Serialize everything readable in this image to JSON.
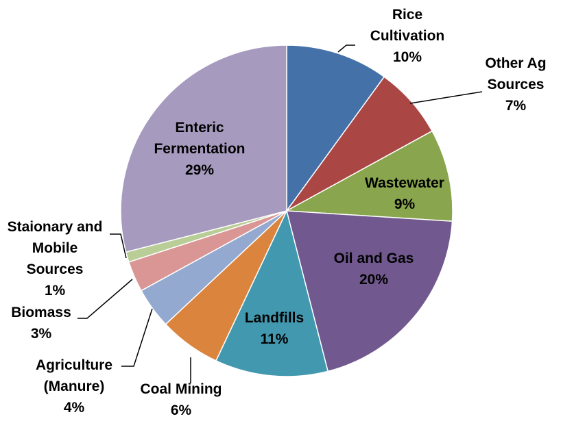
{
  "chart_data": {
    "type": "pie",
    "title": "",
    "legend": "none",
    "start_angle_deg": 0,
    "direction": "clockwise",
    "slices": [
      {
        "name": "Rice Cultivation",
        "label_lines": [
          "Rice",
          "Cultivation"
        ],
        "value": 10,
        "pct_label": "10%",
        "color": "#4472A8"
      },
      {
        "name": "Other Ag Sources",
        "label_lines": [
          "Other Ag",
          "Sources"
        ],
        "value": 7,
        "pct_label": "7%",
        "color": "#AA4745"
      },
      {
        "name": "Wastewater",
        "label_lines": [
          "Wastewater"
        ],
        "value": 9,
        "pct_label": "9%",
        "color": "#89A54E"
      },
      {
        "name": "Oil and Gas",
        "label_lines": [
          "Oil and Gas"
        ],
        "value": 20,
        "pct_label": "20%",
        "color": "#71588F"
      },
      {
        "name": "Landfills",
        "label_lines": [
          "Landfills"
        ],
        "value": 11,
        "pct_label": "11%",
        "color": "#4198AF"
      },
      {
        "name": "Coal Mining",
        "label_lines": [
          "Coal Mining"
        ],
        "value": 6,
        "pct_label": "6%",
        "color": "#DB843D"
      },
      {
        "name": "Agriculture (Manure)",
        "label_lines": [
          "Agriculture",
          "(Manure)"
        ],
        "value": 4,
        "pct_label": "4%",
        "color": "#93A9CF"
      },
      {
        "name": "Biomass",
        "label_lines": [
          "Biomass"
        ],
        "value": 3,
        "pct_label": "3%",
        "color": "#D99694"
      },
      {
        "name": "Staionary and Mobile Sources",
        "label_lines": [
          "Staionary and",
          "Mobile",
          "Sources"
        ],
        "value": 1,
        "pct_label": "1%",
        "color": "#B9CD96"
      },
      {
        "name": "Enteric Fermentation",
        "label_lines": [
          "Enteric",
          "Fermentation"
        ],
        "value": 29,
        "pct_label": "29%",
        "color": "#A69BBE"
      }
    ]
  }
}
